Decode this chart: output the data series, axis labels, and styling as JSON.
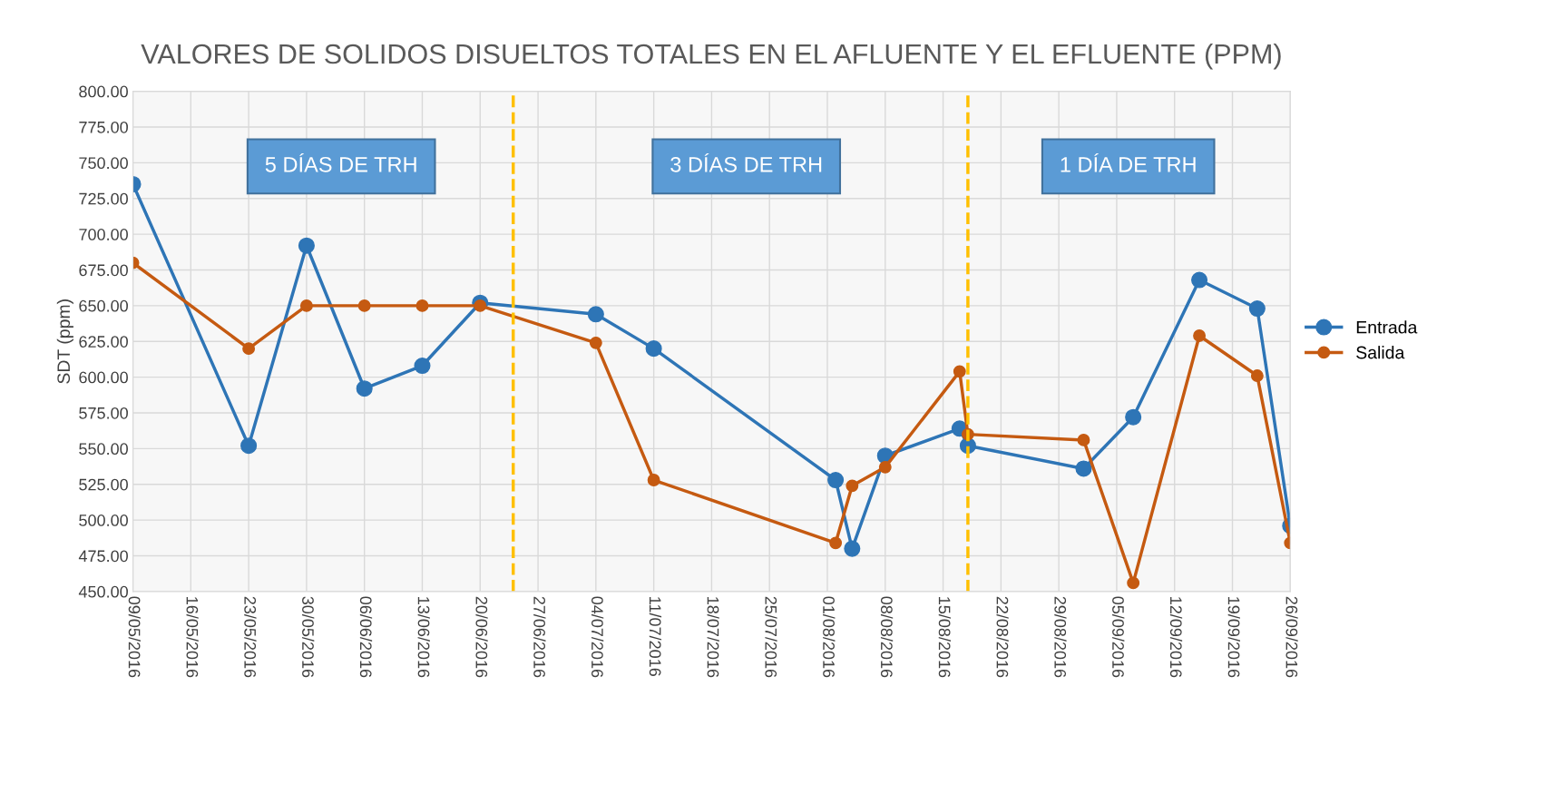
{
  "chart_data": {
    "type": "line",
    "title": "VALORES DE SOLIDOS DISUELTOS TOTALES EN EL AFLUENTE Y EL EFLUENTE (PPM)",
    "ylabel": "SDT (ppm)",
    "x": [
      "2016-05-09",
      "2016-05-23",
      "2016-05-30",
      "2016-06-06",
      "2016-06-13",
      "2016-06-20",
      "2016-07-04",
      "2016-07-11",
      "2016-08-02",
      "2016-08-04",
      "2016-08-08",
      "2016-08-17",
      "2016-08-18",
      "2016-09-01",
      "2016-09-07",
      "2016-09-15",
      "2016-09-22",
      "2016-09-26"
    ],
    "series": [
      {
        "name": "Entrada",
        "color": "#2e75b6",
        "values": [
          735,
          552,
          692,
          592,
          608,
          652,
          644,
          620,
          528,
          480,
          545,
          564,
          552,
          536,
          572,
          668,
          648,
          496
        ]
      },
      {
        "name": "Salida",
        "color": "#c55a11",
        "values": [
          680,
          620,
          650,
          650,
          650,
          650,
          624,
          528,
          484,
          524,
          537,
          604,
          560,
          556,
          456,
          629,
          601,
          484
        ]
      }
    ],
    "ylim": [
      450,
      800
    ],
    "yticks": [
      {
        "value": 450,
        "label": "450.00"
      },
      {
        "value": 475,
        "label": "475.00"
      },
      {
        "value": 500,
        "label": "500.00"
      },
      {
        "value": 525,
        "label": "525.00"
      },
      {
        "value": 550,
        "label": "550.00"
      },
      {
        "value": 575,
        "label": "575.00"
      },
      {
        "value": 600,
        "label": "600.00"
      },
      {
        "value": 625,
        "label": "625.00"
      },
      {
        "value": 650,
        "label": "650.00"
      },
      {
        "value": 675,
        "label": "675.00"
      },
      {
        "value": 700,
        "label": "700.00"
      },
      {
        "value": 725,
        "label": "725.00"
      },
      {
        "value": 750,
        "label": "750.00"
      },
      {
        "value": 775,
        "label": "775.00"
      },
      {
        "value": 800,
        "label": "800.00"
      }
    ],
    "xlim": [
      "2016-05-09",
      "2016-09-26"
    ],
    "xticks": [
      {
        "value": "2016-05-09",
        "label": "09/05/2016"
      },
      {
        "value": "2016-05-16",
        "label": "16/05/2016"
      },
      {
        "value": "2016-05-23",
        "label": "23/05/2016"
      },
      {
        "value": "2016-05-30",
        "label": "30/05/2016"
      },
      {
        "value": "2016-06-06",
        "label": "06/06/2016"
      },
      {
        "value": "2016-06-13",
        "label": "13/06/2016"
      },
      {
        "value": "2016-06-20",
        "label": "20/06/2016"
      },
      {
        "value": "2016-06-27",
        "label": "27/06/2016"
      },
      {
        "value": "2016-07-04",
        "label": "04/07/2016"
      },
      {
        "value": "2016-07-11",
        "label": "11/07/2016"
      },
      {
        "value": "2016-07-18",
        "label": "18/07/2016"
      },
      {
        "value": "2016-07-25",
        "label": "25/07/2016"
      },
      {
        "value": "2016-08-01",
        "label": "01/08/2016"
      },
      {
        "value": "2016-08-08",
        "label": "08/08/2016"
      },
      {
        "value": "2016-08-15",
        "label": "15/08/2016"
      },
      {
        "value": "2016-08-22",
        "label": "22/08/2016"
      },
      {
        "value": "2016-08-29",
        "label": "29/08/2016"
      },
      {
        "value": "2016-09-05",
        "label": "05/09/2016"
      },
      {
        "value": "2016-09-12",
        "label": "12/09/2016"
      },
      {
        "value": "2016-09-19",
        "label": "19/09/2016"
      },
      {
        "value": "2016-09-26",
        "label": "26/09/2016"
      }
    ],
    "ref_lines": [
      {
        "axis": "x",
        "value": "2016-06-24",
        "color": "#ffc000",
        "line_style": "dashed"
      },
      {
        "axis": "x",
        "value": "2016-08-18",
        "color": "#ffc000",
        "line_style": "dashed"
      }
    ],
    "annotations": [
      "5 DÍAS DE TRH",
      "3 DÍAS DE TRH",
      "1 DÍA DE TRH"
    ],
    "grid": true,
    "legend": "right",
    "marker": "circle",
    "line_style": "solid"
  }
}
